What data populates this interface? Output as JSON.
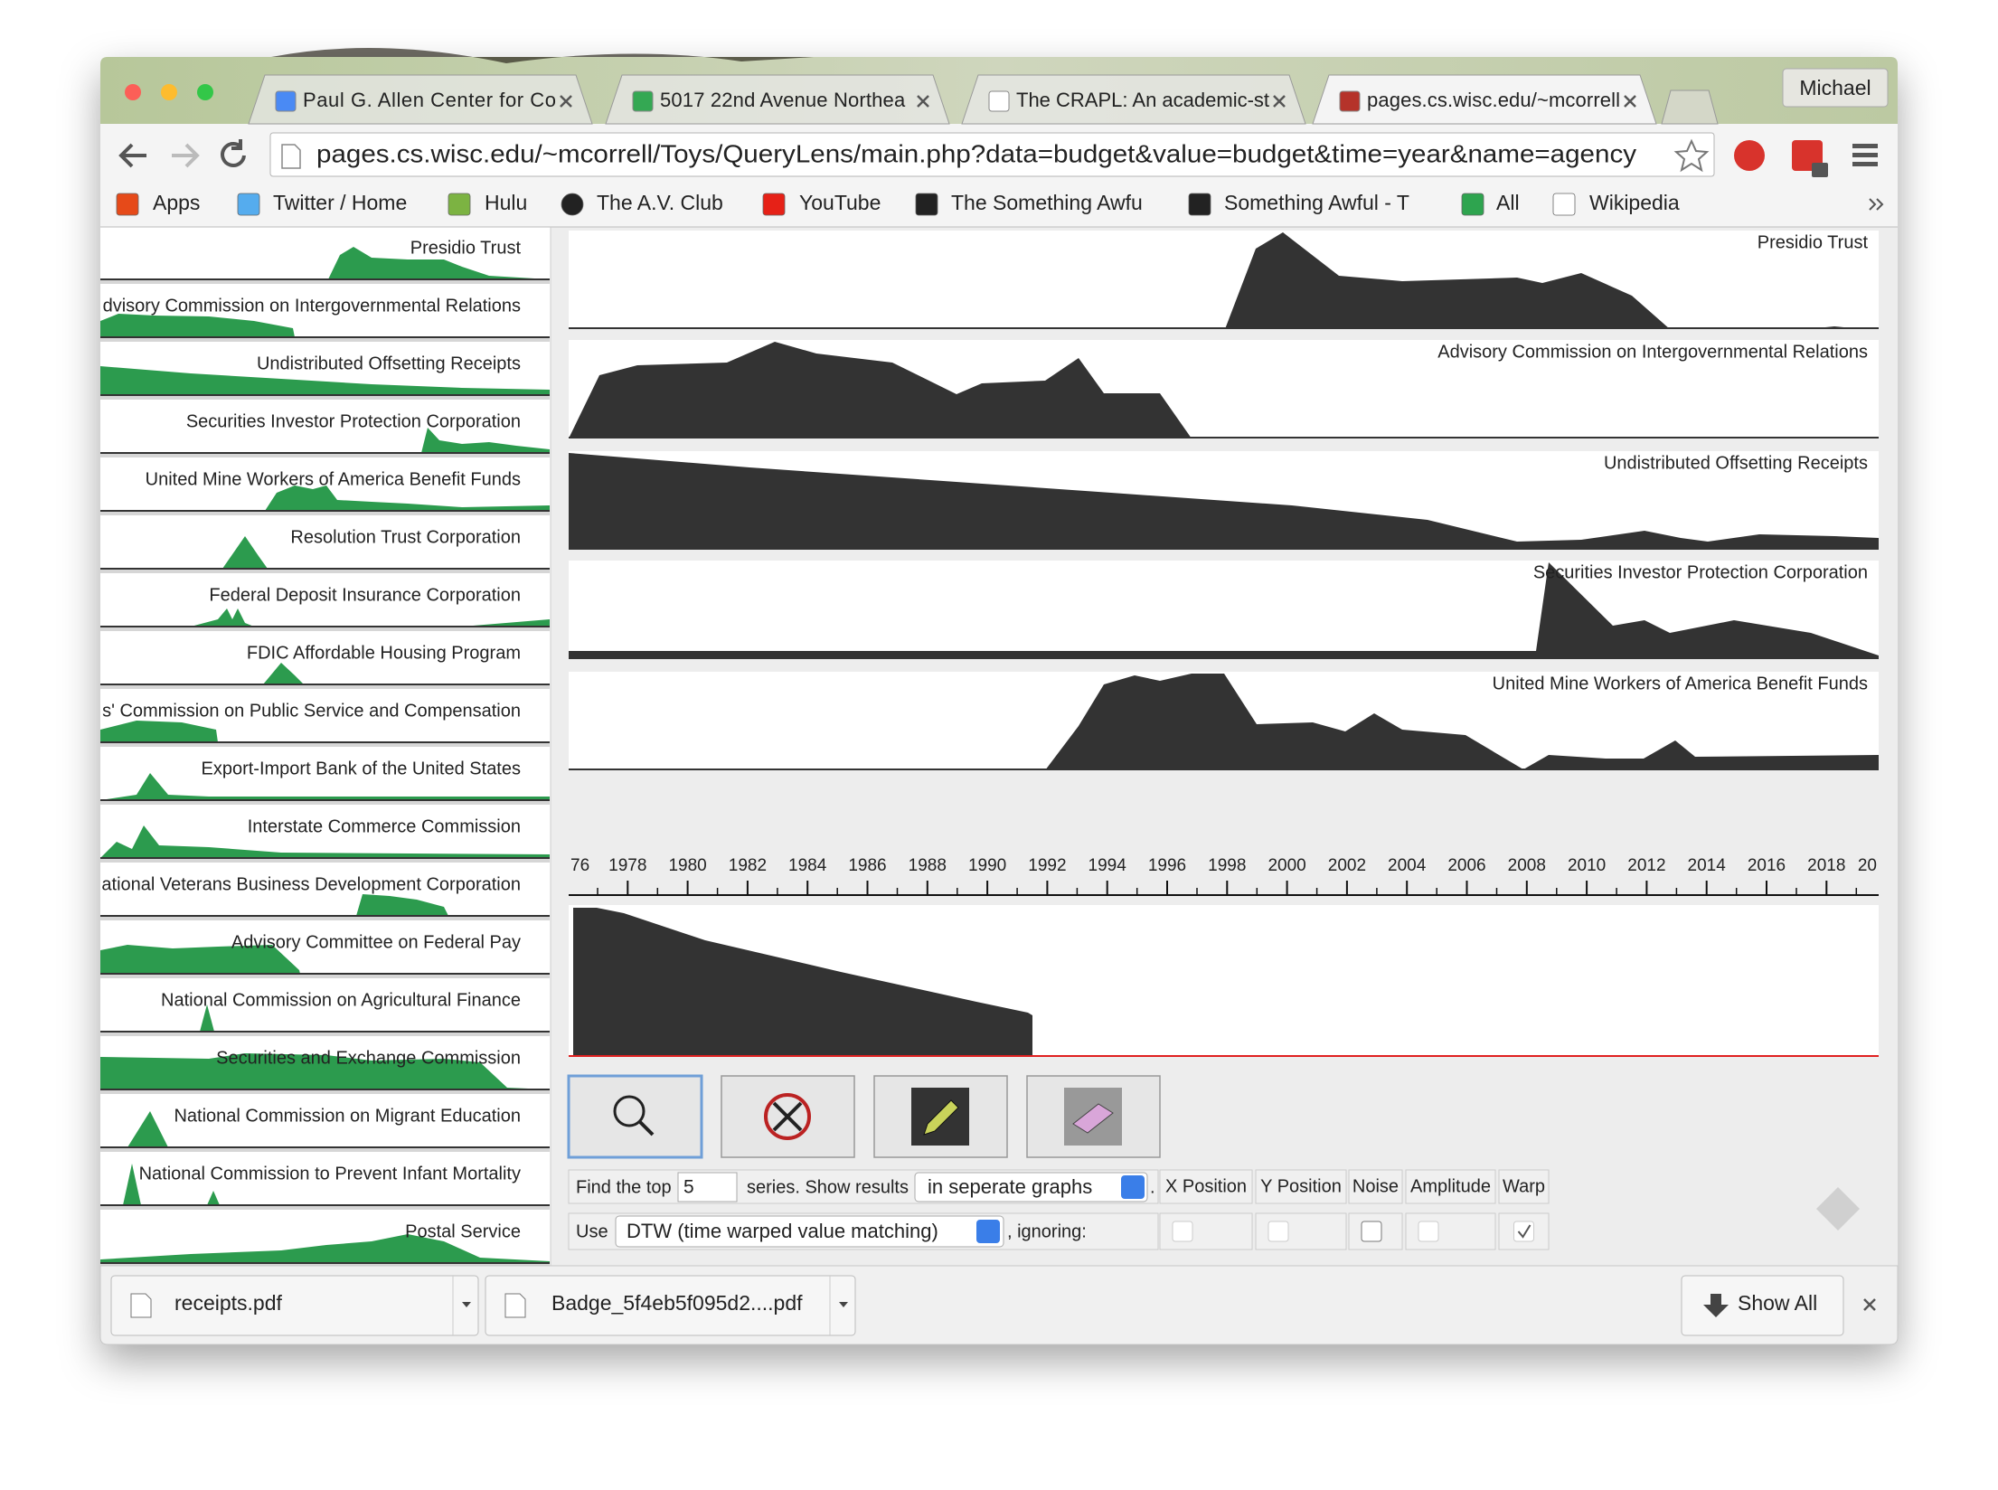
{
  "browser": {
    "tabs": [
      "Paul G. Allen Center for Co",
      "5017 22nd Avenue Northea",
      "The CRAPL: An academic-st",
      "pages.cs.wisc.edu/~mcorrell"
    ],
    "profile": "Michael",
    "url": "pages.cs.wisc.edu/~mcorrell/Toys/QueryLens/main.php?data=budget&value=budget&time=year&name=agency",
    "bookmarks": [
      "Apps",
      "Twitter / Home",
      "Hulu",
      "The A.V. Club",
      "YouTube",
      "The Something Awfu",
      "Something Awful - T",
      "All",
      "Wikipedia"
    ]
  },
  "sidebar": {
    "agencies": [
      "Presidio Trust",
      "dvisory Commission on Intergovernmental Relations",
      "Undistributed Offsetting Receipts",
      "Securities Investor Protection Corporation",
      "United Mine Workers of America Benefit Funds",
      "Resolution Trust Corporation",
      "Federal Deposit Insurance Corporation",
      "FDIC Affordable Housing Program",
      "s' Commission on Public Service and Compensation",
      "Export-Import Bank of the United States",
      "Interstate Commerce Commission",
      "ational Veterans Business Development Corporation",
      "Advisory Committee on Federal Pay",
      "National Commission on Agricultural Finance",
      "Securities and Exchange Commission",
      "National Commission on Migrant Education",
      "National Commission to Prevent Infant Mortality",
      "Postal Service"
    ]
  },
  "results": {
    "series": [
      "Presidio Trust",
      "Advisory Commission on Intergovernmental Relations",
      "Undistributed Offsetting Receipts",
      "Securities Investor Protection Corporation",
      "United Mine Workers of America Benefit Funds"
    ]
  },
  "timeline": {
    "years": [
      "76",
      "1978",
      "1980",
      "1982",
      "1984",
      "1986",
      "1988",
      "1990",
      "1992",
      "1994",
      "1996",
      "1998",
      "2000",
      "2002",
      "2004",
      "2006",
      "2008",
      "2010",
      "2012",
      "2014",
      "2016",
      "2018",
      "20"
    ]
  },
  "query_controls": {
    "find_prefix": "Find the top",
    "top_n": "5",
    "series_text": "series. Show results",
    "display_mode": "in seperate graphs",
    "display_suffix": ".",
    "use": "Use",
    "method": "DTW (time warped value matching)",
    "ignoring": ", ignoring:",
    "options": [
      "X Position",
      "Y Position",
      "Noise",
      "Amplitude",
      "Warp"
    ]
  },
  "downloads": {
    "files": [
      "receipts.pdf",
      "Badge_5f4eb5f095d2....pdf"
    ],
    "show_all": "Show All"
  }
}
